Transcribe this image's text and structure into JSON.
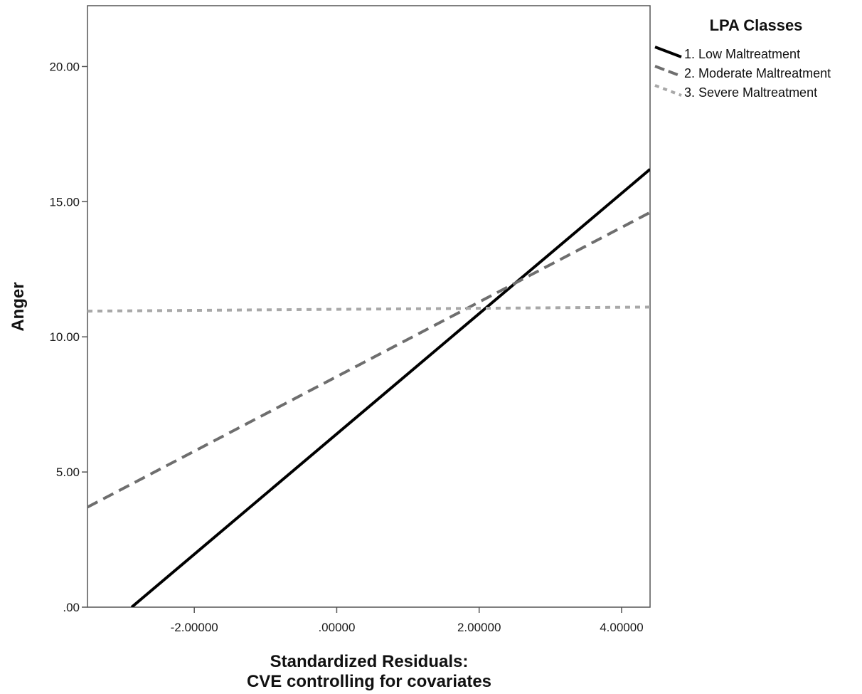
{
  "chart_data": {
    "type": "line",
    "xlabel_line1": "Standardized Residuals:",
    "xlabel_line2": "CVE controlling for covariates",
    "ylabel": "Anger",
    "xlim": [
      -3.5,
      4.4
    ],
    "ylim": [
      0,
      22.25
    ],
    "x_ticks": [
      {
        "value": -2,
        "label": "-2.00000"
      },
      {
        "value": 0,
        "label": ".00000"
      },
      {
        "value": 2,
        "label": "2.00000"
      },
      {
        "value": 4,
        "label": "4.00000"
      }
    ],
    "y_ticks": [
      {
        "value": 0,
        "label": ".00"
      },
      {
        "value": 5,
        "label": "5.00"
      },
      {
        "value": 10,
        "label": "10.00"
      },
      {
        "value": 15,
        "label": "15.00"
      },
      {
        "value": 20,
        "label": "20.00"
      }
    ],
    "grid": false,
    "legend": {
      "title": "LPA Classes",
      "placement": "top-right outside plot"
    },
    "series": [
      {
        "name": "1. Low Maltreatment",
        "x": [
          -2.88,
          4.4
        ],
        "y": [
          0.0,
          16.2
        ],
        "color": "#000000",
        "style": "solid"
      },
      {
        "name": "2. Moderate Maltreatment",
        "x": [
          -3.5,
          4.4
        ],
        "y": [
          3.7,
          14.6
        ],
        "color": "#6e6e6e",
        "style": "dashed"
      },
      {
        "name": "3. Severe Maltreatment",
        "x": [
          -3.5,
          4.4
        ],
        "y": [
          10.95,
          11.1
        ],
        "color": "#a8a8a8",
        "style": "dotted"
      }
    ]
  }
}
